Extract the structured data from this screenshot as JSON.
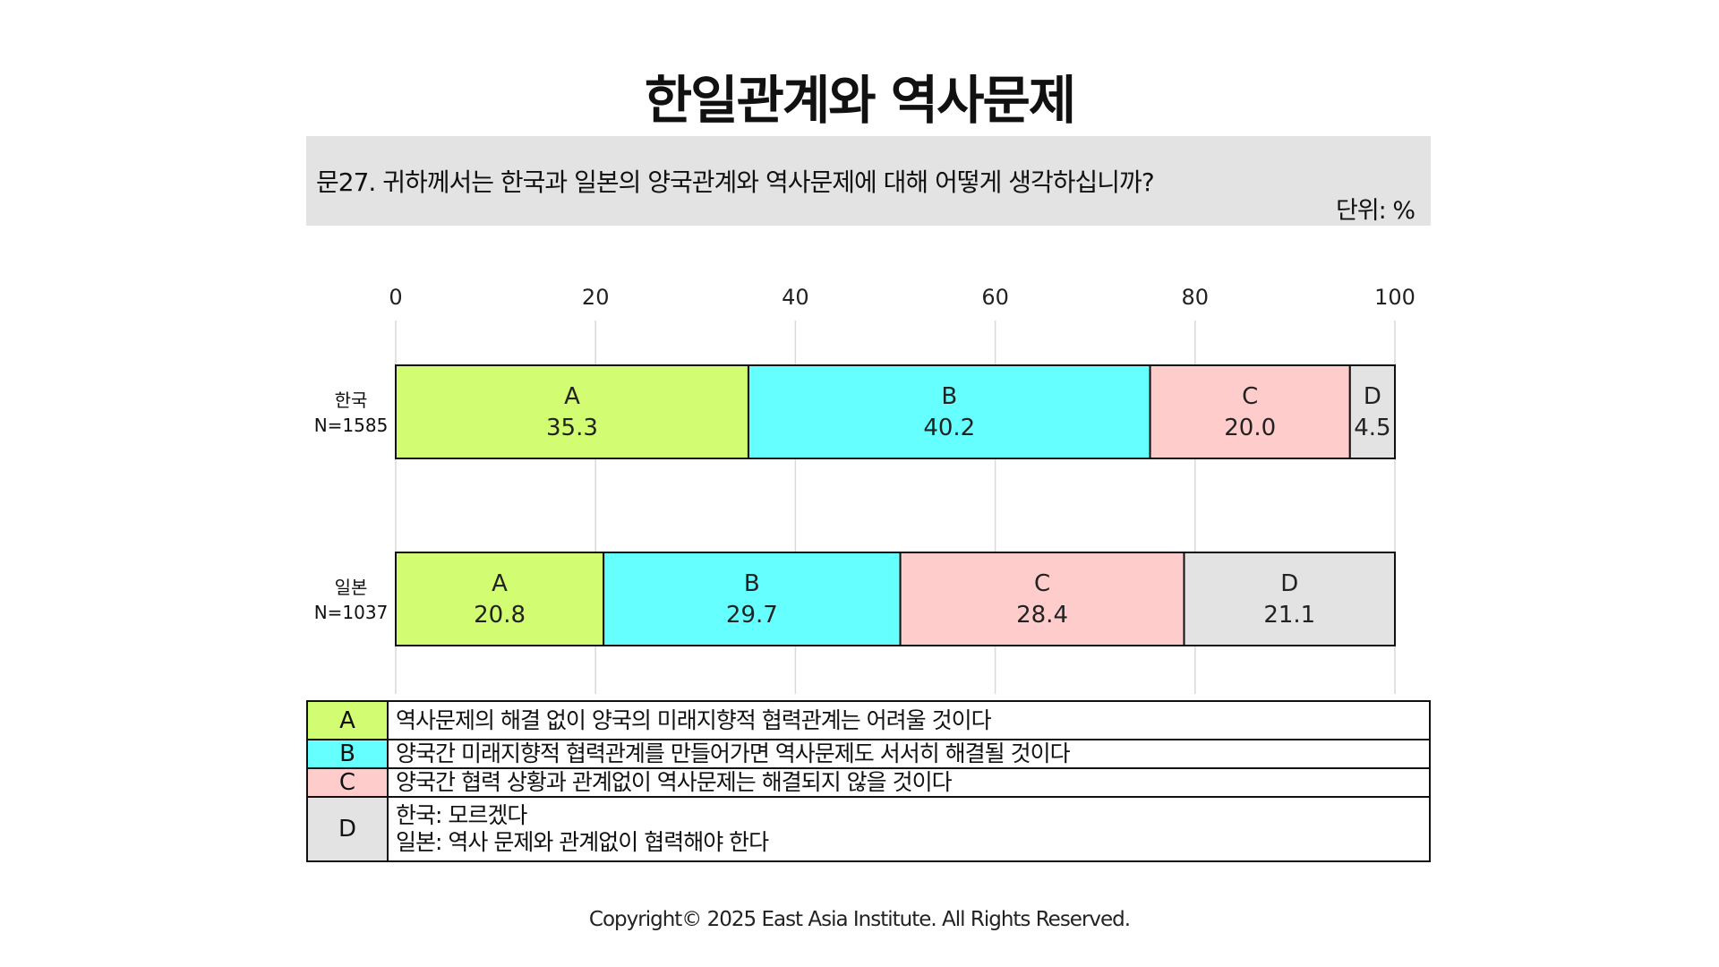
{
  "title": "한일관계와 역사문제",
  "question": "문27. 귀하께서는 한국과 일본의 양국관계와 역사문제에 대해 어떻게 생각하십니까?",
  "unit": "단위: %",
  "chart_data": {
    "type": "bar",
    "orientation": "horizontal",
    "stacked": true,
    "x_ticks": [
      "0",
      "20",
      "40",
      "60",
      "80",
      "100"
    ],
    "xlim": [
      0,
      100
    ],
    "grid": true,
    "rows": [
      {
        "name": "한국",
        "n": "N=1585"
      },
      {
        "name": "일본",
        "n": "N=1037"
      }
    ],
    "series": [
      {
        "name": "A",
        "color": "#d2fc71",
        "values": [
          35.3,
          20.8
        ],
        "labels": [
          "35.3",
          "20.8"
        ]
      },
      {
        "name": "B",
        "color": "#66ffff",
        "values": [
          40.2,
          29.7
        ],
        "labels": [
          "40.2",
          "29.7"
        ]
      },
      {
        "name": "C",
        "color": "#ffcccc",
        "values": [
          20.0,
          28.4
        ],
        "labels": [
          "20.0",
          "28.4"
        ]
      },
      {
        "name": "D",
        "color": "#e3e3e3",
        "values": [
          4.5,
          21.1
        ],
        "labels": [
          "4.5",
          "21.1"
        ]
      }
    ]
  },
  "legend": [
    {
      "key": "A",
      "color": "#d2fc71",
      "lines": [
        "역사문제의 해결 없이 양국의 미래지향적 협력관계는 어려울 것이다"
      ]
    },
    {
      "key": "B",
      "color": "#66ffff",
      "lines": [
        "양국간 미래지향적 협력관계를 만들어가면 역사문제도 서서히 해결될 것이다"
      ]
    },
    {
      "key": "C",
      "color": "#ffcccc",
      "lines": [
        "양국간 협력 상황과 관계없이 역사문제는 해결되지 않을 것이다"
      ]
    },
    {
      "key": "D",
      "color": "#e3e3e3",
      "lines": [
        "한국: 모르겠다",
        "일본: 역사 문제와 관계없이 협력해야 한다"
      ]
    }
  ],
  "copyright": "Copyright© 2025 East Asia Institute. All Rights Reserved."
}
